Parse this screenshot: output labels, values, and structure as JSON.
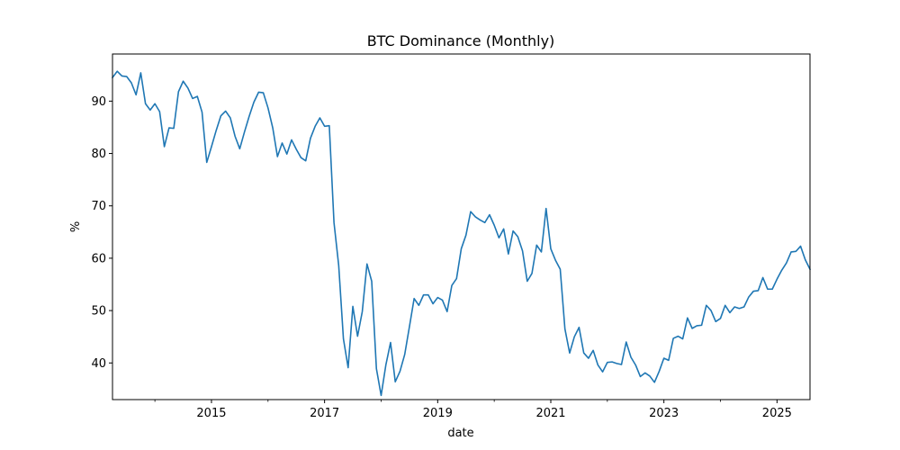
{
  "chart_data": {
    "type": "line",
    "title": "BTC Dominance (Monthly)",
    "xlabel": "date",
    "ylabel": "%",
    "xlim": [
      "2013-04",
      "2025-08"
    ],
    "ylim": [
      33,
      99
    ],
    "x_ticks": [
      "2015",
      "2017",
      "2019",
      "2021",
      "2023",
      "2025"
    ],
    "y_ticks": [
      40,
      50,
      60,
      70,
      80,
      90
    ],
    "grid": false,
    "legend": "none",
    "colors": {
      "line": "#1f77b4"
    },
    "series": [
      {
        "x": [
          "2013-04",
          "2013-05",
          "2013-06",
          "2013-07",
          "2013-08",
          "2013-09",
          "2013-10",
          "2013-11",
          "2013-12",
          "2014-01",
          "2014-02",
          "2014-03",
          "2014-04",
          "2014-05",
          "2014-06",
          "2014-07",
          "2014-08",
          "2014-09",
          "2014-10",
          "2014-11",
          "2014-12",
          "2015-01",
          "2015-02",
          "2015-03",
          "2015-04",
          "2015-05",
          "2015-06",
          "2015-07",
          "2015-08",
          "2015-09",
          "2015-10",
          "2015-11",
          "2015-12",
          "2016-01",
          "2016-02",
          "2016-03",
          "2016-04",
          "2016-05",
          "2016-06",
          "2016-07",
          "2016-08",
          "2016-09",
          "2016-10",
          "2016-11",
          "2016-12",
          "2017-01",
          "2017-02",
          "2017-03",
          "2017-04",
          "2017-05",
          "2017-06",
          "2017-07",
          "2017-08",
          "2017-09",
          "2017-10",
          "2017-11",
          "2017-12",
          "2018-01",
          "2018-02",
          "2018-03",
          "2018-04",
          "2018-05",
          "2018-06",
          "2018-07",
          "2018-08",
          "2018-09",
          "2018-10",
          "2018-11",
          "2018-12",
          "2019-01",
          "2019-02",
          "2019-03",
          "2019-04",
          "2019-05",
          "2019-06",
          "2019-07",
          "2019-08",
          "2019-09",
          "2019-10",
          "2019-11",
          "2019-12",
          "2020-01",
          "2020-02",
          "2020-03",
          "2020-04",
          "2020-05",
          "2020-06",
          "2020-07",
          "2020-08",
          "2020-09",
          "2020-10",
          "2020-11",
          "2020-12",
          "2021-01",
          "2021-02",
          "2021-03",
          "2021-04",
          "2021-05",
          "2021-06",
          "2021-07",
          "2021-08",
          "2021-09",
          "2021-10",
          "2021-11",
          "2021-12",
          "2022-01",
          "2022-02",
          "2022-03",
          "2022-04",
          "2022-05",
          "2022-06",
          "2022-07",
          "2022-08",
          "2022-09",
          "2022-10",
          "2022-11",
          "2022-12",
          "2023-01",
          "2023-02",
          "2023-03",
          "2023-04",
          "2023-05",
          "2023-06",
          "2023-07",
          "2023-08",
          "2023-09",
          "2023-10",
          "2023-11",
          "2023-12",
          "2024-01",
          "2024-02",
          "2024-03",
          "2024-04",
          "2024-05",
          "2024-06",
          "2024-07",
          "2024-08",
          "2024-09",
          "2024-10",
          "2024-11",
          "2024-12",
          "2025-01",
          "2025-02",
          "2025-03",
          "2025-04",
          "2025-05",
          "2025-06",
          "2025-07",
          "2025-08"
        ],
        "y": [
          94.5,
          95.7,
          94.8,
          94.7,
          93.5,
          91.2,
          95.4,
          89.5,
          88.3,
          89.5,
          88.0,
          81.3,
          84.9,
          84.8,
          91.8,
          93.8,
          92.5,
          90.5,
          90.9,
          87.9,
          78.3,
          81.3,
          84.4,
          87.2,
          88.1,
          86.8,
          83.3,
          80.9,
          84.1,
          87.1,
          89.8,
          91.7,
          91.6,
          88.7,
          84.9,
          79.4,
          82.0,
          79.9,
          82.6,
          80.8,
          79.2,
          78.6,
          82.9,
          85.2,
          86.8,
          85.2,
          85.3,
          66.8,
          58.6,
          44.6,
          39.1,
          50.8,
          45.1,
          49.8,
          58.9,
          55.6,
          38.9,
          33.8,
          39.6,
          43.9,
          36.4,
          38.4,
          41.6,
          46.9,
          52.3,
          51.0,
          53.0,
          53.0,
          51.3,
          52.5,
          52.0,
          49.8,
          54.8,
          56.1,
          61.8,
          64.4,
          68.9,
          67.9,
          67.3,
          66.8,
          68.3,
          66.3,
          63.9,
          65.6,
          60.8,
          65.2,
          64.1,
          61.4,
          55.6,
          57.1,
          62.5,
          61.2,
          69.5,
          61.8,
          59.6,
          57.9,
          46.5,
          41.9,
          45.0,
          46.8,
          41.9,
          40.9,
          42.4,
          39.6,
          38.3,
          40.1,
          40.2,
          39.9,
          39.7,
          44.0,
          41.1,
          39.6,
          37.4,
          38.1,
          37.5,
          36.3,
          38.4,
          40.9,
          40.5,
          44.7,
          45.1,
          44.6,
          48.6,
          46.6,
          47.1,
          47.2,
          51.0,
          50.0,
          47.9,
          48.5,
          51.0,
          49.6,
          50.7,
          50.4,
          50.7,
          52.6,
          53.7,
          53.8,
          56.3,
          54.1,
          54.1,
          56.0,
          57.7,
          59.1,
          61.2,
          61.3,
          62.3,
          59.7,
          57.9
        ]
      }
    ]
  }
}
